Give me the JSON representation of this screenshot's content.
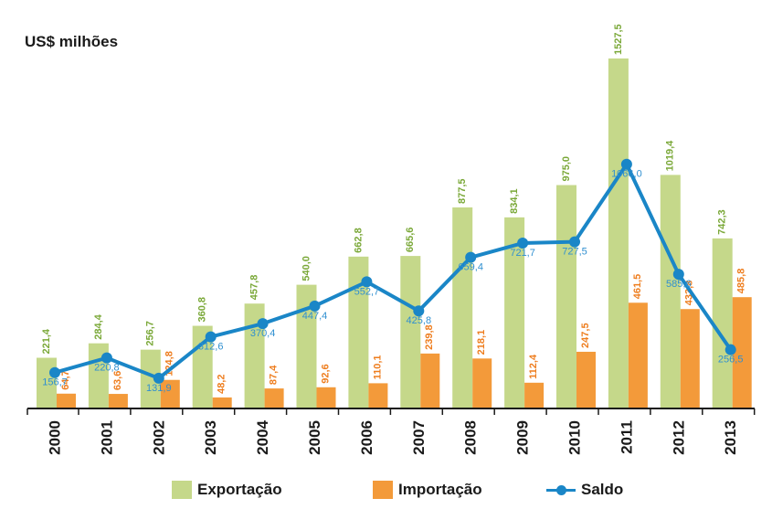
{
  "colors": {
    "export": "#c5d88a",
    "import": "#f39a3a",
    "saldo": "#1a86c7",
    "export_label": "#7aa838",
    "import_label": "#ee7d1e",
    "saldo_label": "#2f8fd0",
    "axis": "#1a1a1a"
  },
  "chart_data": {
    "type": "bar",
    "unit_label": "US$ milhões",
    "categories": [
      "2000",
      "2001",
      "2002",
      "2003",
      "2004",
      "2005",
      "2006",
      "2007",
      "2008",
      "2009",
      "2010",
      "2011",
      "2012",
      "2013"
    ],
    "series": [
      {
        "name": "Exportação",
        "type": "bar",
        "values": [
          221.4,
          284.4,
          256.7,
          360.8,
          457.8,
          540.0,
          662.8,
          665.6,
          877.5,
          834.1,
          975.0,
          1527.5,
          1019.4,
          742.3
        ],
        "labels": [
          "221,4",
          "284,4",
          "256,7",
          "360,8",
          "457,8",
          "540,0",
          "662,8",
          "665,6",
          "877,5",
          "834,1",
          "975,0",
          "1527,5",
          "1019,4",
          "742,3"
        ]
      },
      {
        "name": "Importação",
        "type": "bar",
        "values": [
          64.7,
          63.6,
          124.8,
          48.2,
          87.4,
          92.6,
          110.1,
          239.8,
          218.1,
          112.4,
          247.5,
          461.5,
          433.8,
          485.8
        ],
        "labels": [
          "64,7",
          "63,6",
          "124,8",
          "48,2",
          "87,4",
          "92,6",
          "110,1",
          "239,8",
          "218,1",
          "112,4",
          "247,5",
          "461,5",
          "433,8",
          "485,8"
        ]
      },
      {
        "name": "Saldo",
        "type": "line",
        "values": [
          156.7,
          220.8,
          131.9,
          312.6,
          370.4,
          447.4,
          552.7,
          425.8,
          659.4,
          721.7,
          727.5,
          1066.0,
          585.6,
          256.5
        ],
        "labels": [
          "156,7",
          "220,8",
          "131,9",
          "312,6",
          "370,4",
          "447,4",
          "552,7",
          "425,8",
          "659,4",
          "721,7",
          "727,5",
          "1066,0",
          "585,6",
          "256,5"
        ]
      }
    ],
    "ylim": [
      0,
      1600
    ],
    "grid": false,
    "legend_position": "bottom"
  },
  "legend": {
    "export": "Exportação",
    "import": "Importação",
    "saldo": "Saldo"
  }
}
